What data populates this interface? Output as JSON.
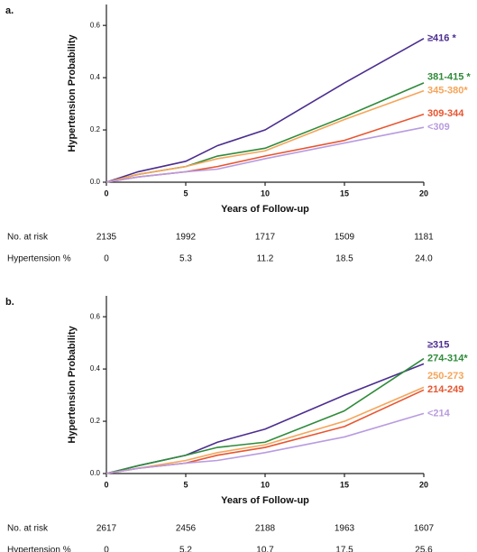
{
  "chart_data": [
    {
      "type": "line",
      "panel": "a.",
      "ylabel": "Hypertension Probability",
      "xlabel": "Years of Follow-up",
      "x": [
        0,
        2,
        5,
        7,
        10,
        15,
        20
      ],
      "xlim": [
        0,
        20
      ],
      "xticks": [
        0,
        5,
        10,
        15,
        20
      ],
      "ylim": [
        0,
        0.68
      ],
      "yticks": [
        {
          "value": 0,
          "label": "0.0"
        },
        0.2,
        0.4,
        0.6
      ],
      "series": [
        {
          "name": "≥416 *",
          "color": "#4b2d8f",
          "values": [
            0,
            0.04,
            0.08,
            0.14,
            0.2,
            0.38,
            0.55
          ]
        },
        {
          "name": "381-415 *",
          "color": "#2e8b3a",
          "values": [
            0,
            0.03,
            0.06,
            0.1,
            0.13,
            0.25,
            0.38
          ]
        },
        {
          "name": "345-380*",
          "color": "#f5a55a",
          "values": [
            0,
            0.03,
            0.06,
            0.09,
            0.12,
            0.24,
            0.35
          ]
        },
        {
          "name": "309-344",
          "color": "#e8552f",
          "values": [
            0,
            0.02,
            0.04,
            0.06,
            0.1,
            0.16,
            0.26
          ]
        },
        {
          "name": "<309",
          "color": "#b89be0",
          "values": [
            0,
            0.02,
            0.04,
            0.05,
            0.09,
            0.15,
            0.21
          ]
        }
      ],
      "risk_table": {
        "rows": [
          {
            "label": "No. at risk",
            "values": [
              "2135",
              "1992",
              "1717",
              "1509",
              "1181"
            ]
          },
          {
            "label": "Hypertension %",
            "values": [
              "0",
              "5.3",
              "11.2",
              "18.5",
              "24.0"
            ]
          }
        ]
      }
    },
    {
      "type": "line",
      "panel": "b.",
      "ylabel": "Hypertension Probability",
      "xlabel": "Years of Follow-up",
      "x": [
        0,
        2,
        5,
        7,
        10,
        15,
        20
      ],
      "xlim": [
        0,
        20
      ],
      "xticks": [
        0,
        5,
        10,
        15,
        20
      ],
      "ylim": [
        0,
        0.68
      ],
      "yticks": [
        {
          "value": 0,
          "label": "0.0"
        },
        0.2,
        0.4,
        0.6
      ],
      "series": [
        {
          "name": "≥315",
          "color": "#4b2d8f",
          "values": [
            0,
            0.03,
            0.07,
            0.12,
            0.17,
            0.3,
            0.42
          ]
        },
        {
          "name": "274-314*",
          "color": "#2e8b3a",
          "values": [
            0,
            0.03,
            0.07,
            0.1,
            0.12,
            0.24,
            0.44
          ]
        },
        {
          "name": "250-273",
          "color": "#f5a55a",
          "values": [
            0,
            0.02,
            0.05,
            0.08,
            0.11,
            0.2,
            0.33
          ]
        },
        {
          "name": "214-249",
          "color": "#e8552f",
          "values": [
            0,
            0.02,
            0.04,
            0.07,
            0.1,
            0.18,
            0.32
          ]
        },
        {
          "name": "<214",
          "color": "#b89be0",
          "values": [
            0,
            0.02,
            0.04,
            0.05,
            0.08,
            0.14,
            0.23
          ]
        }
      ],
      "risk_table": {
        "rows": [
          {
            "label": "No. at risk",
            "values": [
              "2617",
              "2456",
              "2188",
              "1963",
              "1607"
            ]
          },
          {
            "label": "Hypertension %",
            "values": [
              "0",
              "5.2",
              "10.7",
              "17.5",
              "25.6"
            ]
          }
        ]
      }
    }
  ]
}
